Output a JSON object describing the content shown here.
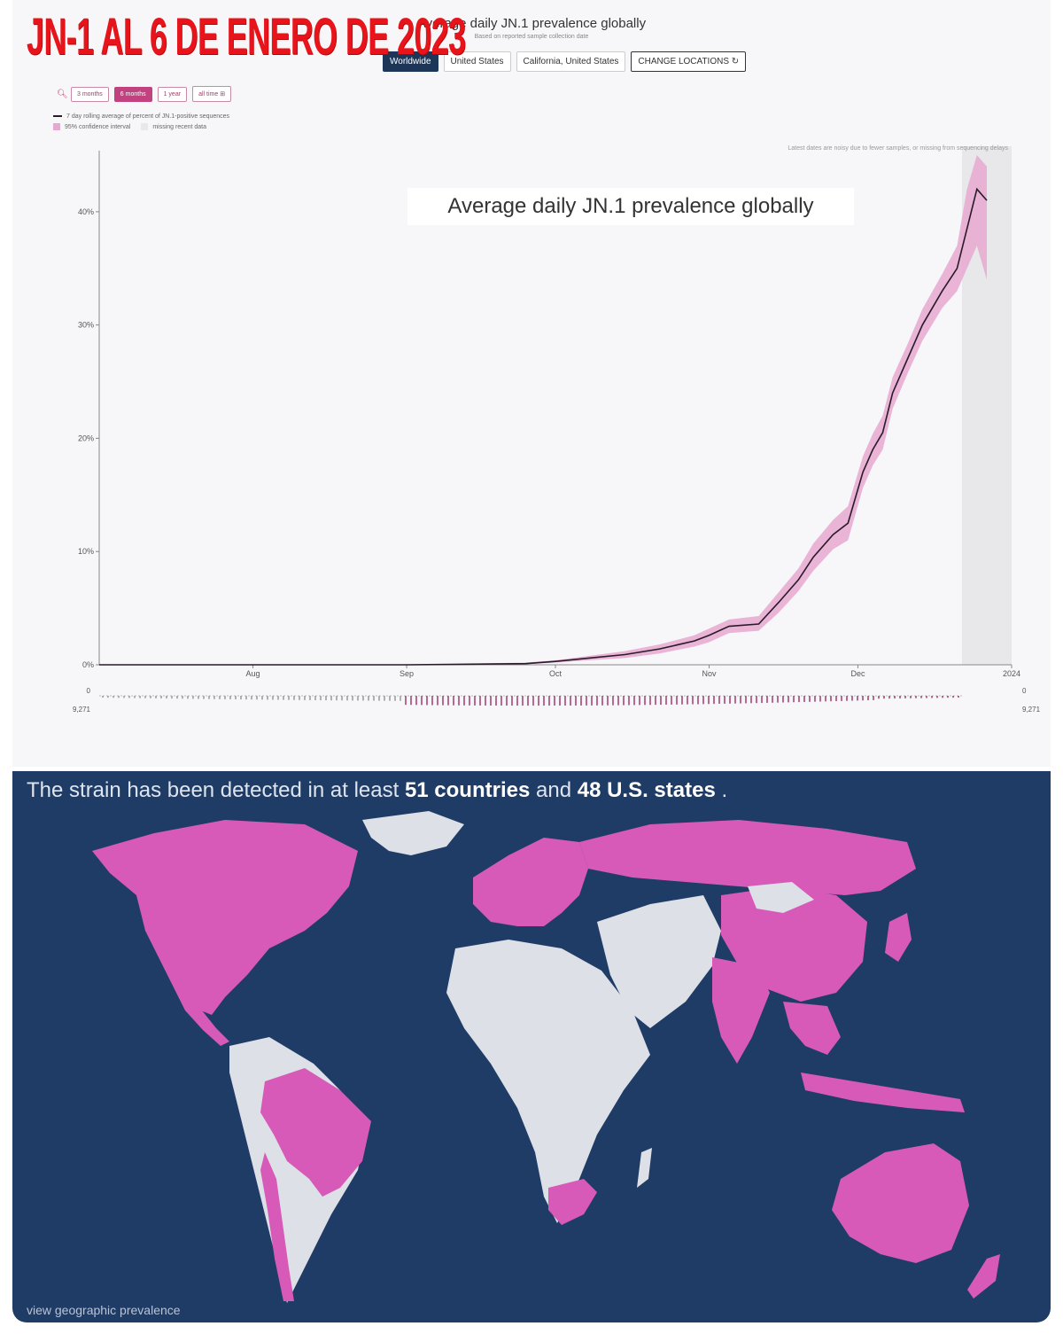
{
  "overlay_title": "JN-1 AL 6 DE ENERO DE 2023",
  "chart_header": {
    "title": "Average daily JN.1 prevalence globally",
    "subtitle": "Based on reported sample collection date"
  },
  "locations": {
    "buttons": [
      "Worldwide",
      "United States",
      "California, United States"
    ],
    "active": "Worldwide",
    "change_label": "CHANGE LOCATIONS"
  },
  "time_range": {
    "buttons": [
      "3 months",
      "6 months",
      "1 year",
      "all time"
    ],
    "active": "6 months"
  },
  "legend": {
    "line_label": "7 day rolling average of percent of JN.1-positive sequences",
    "ci_label": "95% confidence interval",
    "missing_label": "missing recent data"
  },
  "annotation": "Latest dates are noisy due to fewer samples, or missing from sequencing delays",
  "inset_title": "Average daily JN.1 prevalence globally",
  "sequence_counts": {
    "min_label": "0",
    "max_label": "9,271"
  },
  "colors": {
    "line": "#2a1a2a",
    "ci": "#e6a8cf",
    "missing": "#e8e8ea",
    "map_bg": "#1f3c66",
    "detected": "#d85ab8",
    "not_detected": "#dde0e6",
    "title_red": "#e8141b"
  },
  "chart_data": {
    "type": "line",
    "title": "Average daily JN.1 prevalence globally",
    "subtitle": "Based on reported sample collection date",
    "xlabel": "",
    "ylabel": "",
    "x_ticks": [
      "Aug",
      "Sep",
      "Oct",
      "Nov",
      "Dec",
      "2024"
    ],
    "y_ticks": [
      "0%",
      "10%",
      "20%",
      "30%",
      "40%"
    ],
    "ylim": [
      0,
      45
    ],
    "x": [
      "2023-07-01",
      "2023-08-01",
      "2023-09-01",
      "2023-09-25",
      "2023-10-01",
      "2023-10-08",
      "2023-10-15",
      "2023-10-22",
      "2023-10-29",
      "2023-11-01",
      "2023-11-05",
      "2023-11-11",
      "2023-11-15",
      "2023-11-19",
      "2023-11-22",
      "2023-11-26",
      "2023-11-29",
      "2023-12-02",
      "2023-12-04",
      "2023-12-06",
      "2023-12-08",
      "2023-12-11",
      "2023-12-14",
      "2023-12-18",
      "2023-12-21",
      "2023-12-23",
      "2023-12-25",
      "2023-12-27"
    ],
    "series": [
      {
        "name": "7 day rolling average of percent of JN.1-positive sequences",
        "values": [
          0,
          0,
          0,
          0.1,
          0.3,
          0.6,
          0.9,
          1.4,
          2.1,
          2.6,
          3.4,
          3.6,
          5.5,
          7.5,
          9.5,
          11.5,
          12.5,
          17,
          19,
          20.5,
          24,
          27,
          30,
          33,
          35,
          38.5,
          42,
          41
        ]
      }
    ],
    "ci_low": [
      0,
      0,
      0,
      0.05,
      0.2,
      0.4,
      0.6,
      1.0,
      1.6,
      2.0,
      2.8,
      3.0,
      4.6,
      6.5,
      8.3,
      10.2,
      11.0,
      15.6,
      17.6,
      19.0,
      22.6,
      25.7,
      28.6,
      31.5,
      33.0,
      35.0,
      37.0,
      34.0
    ],
    "ci_high": [
      0,
      0,
      0,
      0.2,
      0.4,
      0.8,
      1.2,
      1.8,
      2.6,
      3.2,
      4.0,
      4.3,
      6.4,
      8.5,
      10.7,
      12.8,
      14.0,
      18.4,
      20.4,
      22.0,
      25.4,
      28.3,
      31.4,
      34.5,
      37.0,
      42.0,
      46.0,
      44.0
    ],
    "missing_data_from": "2023-12-22",
    "grid": false,
    "legend_position": "top-left"
  },
  "map": {
    "heading_pre": "The strain has been detected in at least ",
    "heading_b1": "51 countries",
    "heading_mid": " and ",
    "heading_b2": "48 U.S. states",
    "heading_post": " .",
    "footer": "view geographic prevalence"
  }
}
